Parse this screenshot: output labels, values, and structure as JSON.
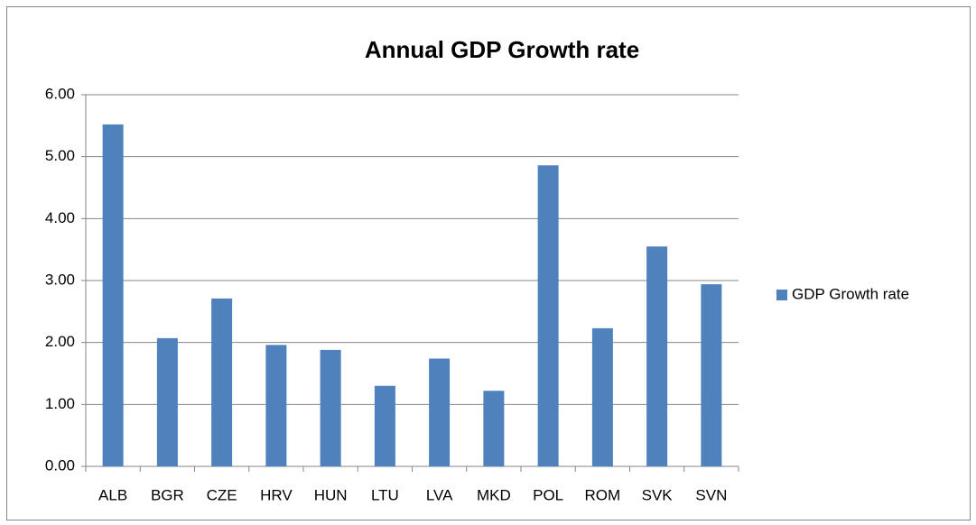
{
  "chart_data": {
    "type": "bar",
    "title": "Annual GDP Growth rate",
    "categories": [
      "ALB",
      "BGR",
      "CZE",
      "HRV",
      "HUN",
      "LTU",
      "LVA",
      "MKD",
      "POL",
      "ROM",
      "SVK",
      "SVN"
    ],
    "series": [
      {
        "name": "GDP Growth rate",
        "color": "#4f81bd",
        "values": [
          5.52,
          2.07,
          2.71,
          1.96,
          1.88,
          1.3,
          1.74,
          1.22,
          4.86,
          2.23,
          3.55,
          2.94
        ]
      }
    ],
    "ylim": [
      0,
      6
    ],
    "yticks": [
      {
        "value": 0,
        "label": "0.00"
      },
      {
        "value": 1,
        "label": "1.00"
      },
      {
        "value": 2,
        "label": "2.00"
      },
      {
        "value": 3,
        "label": "3.00"
      },
      {
        "value": 4,
        "label": "4.00"
      },
      {
        "value": 5,
        "label": "5.00"
      },
      {
        "value": 6,
        "label": "6.00"
      }
    ],
    "grid": true,
    "legend": "right"
  }
}
